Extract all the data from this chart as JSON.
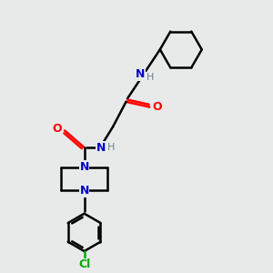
{
  "bg_color": "#e8eaea",
  "atom_colors": {
    "C": "#000000",
    "N": "#0000cc",
    "O": "#ff0000",
    "Cl": "#00aa00",
    "H": "#708090"
  },
  "bond_color": "#000000",
  "bond_width": 1.8,
  "figsize": [
    3.0,
    3.0
  ],
  "dpi": 100
}
